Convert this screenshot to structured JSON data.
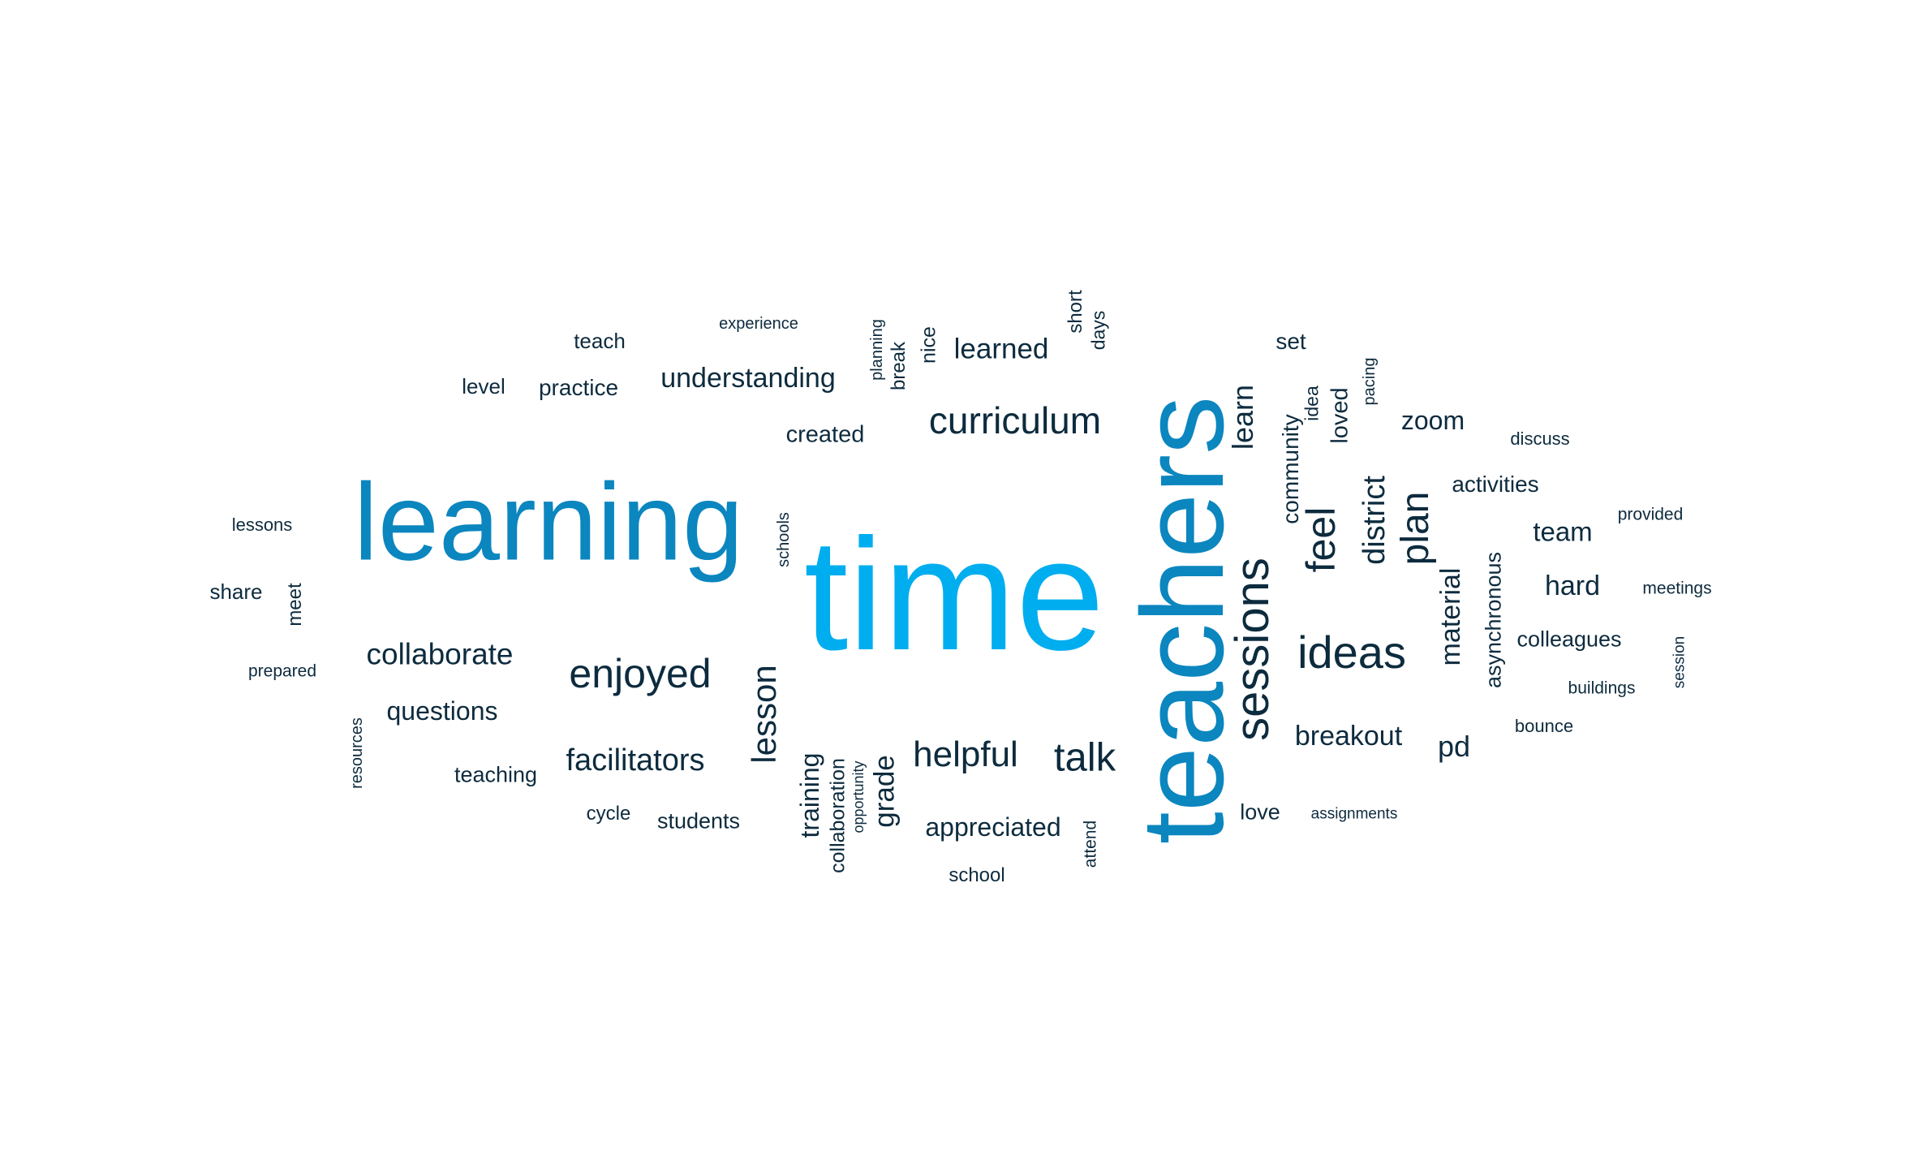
{
  "palette": {
    "dark": "#0d2b3e",
    "mid": "#0b86bf",
    "bright": "#00aef0"
  },
  "words": [
    {
      "text": "time",
      "tone": "bright",
      "weight": 100
    },
    {
      "text": "learning",
      "tone": "mid",
      "weight": 78
    },
    {
      "text": "teachers",
      "tone": "mid",
      "weight": 82
    },
    {
      "text": "sessions",
      "tone": "dark",
      "weight": 40
    },
    {
      "text": "ideas",
      "tone": "dark",
      "weight": 38
    },
    {
      "text": "enjoyed",
      "tone": "dark",
      "weight": 35
    },
    {
      "text": "curriculum",
      "tone": "dark",
      "weight": 32
    },
    {
      "text": "talk",
      "tone": "dark",
      "weight": 33
    },
    {
      "text": "helpful",
      "tone": "dark",
      "weight": 31
    },
    {
      "text": "feel",
      "tone": "dark",
      "weight": 34
    },
    {
      "text": "plan",
      "tone": "dark",
      "weight": 33
    },
    {
      "text": "lesson",
      "tone": "dark",
      "weight": 31
    },
    {
      "text": "facilitators",
      "tone": "dark",
      "weight": 27
    },
    {
      "text": "collaborate",
      "tone": "dark",
      "weight": 26
    },
    {
      "text": "district",
      "tone": "dark",
      "weight": 27
    },
    {
      "text": "understanding",
      "tone": "dark",
      "weight": 24
    },
    {
      "text": "learned",
      "tone": "dark",
      "weight": 24
    },
    {
      "text": "learn",
      "tone": "dark",
      "weight": 25
    },
    {
      "text": "material",
      "tone": "dark",
      "weight": 24
    },
    {
      "text": "breakout",
      "tone": "dark",
      "weight": 23
    },
    {
      "text": "pd",
      "tone": "dark",
      "weight": 26
    },
    {
      "text": "hard",
      "tone": "dark",
      "weight": 23
    },
    {
      "text": "team",
      "tone": "dark",
      "weight": 23
    },
    {
      "text": "zoom",
      "tone": "dark",
      "weight": 22
    },
    {
      "text": "grade",
      "tone": "dark",
      "weight": 24
    },
    {
      "text": "training",
      "tone": "dark",
      "weight": 22
    },
    {
      "text": "questions",
      "tone": "dark",
      "weight": 22
    },
    {
      "text": "appreciated",
      "tone": "dark",
      "weight": 22
    },
    {
      "text": "community",
      "tone": "dark",
      "weight": 19
    },
    {
      "text": "loved",
      "tone": "dark",
      "weight": 19
    },
    {
      "text": "activities",
      "tone": "dark",
      "weight": 19
    },
    {
      "text": "asynchronous",
      "tone": "dark",
      "weight": 18
    },
    {
      "text": "colleagues",
      "tone": "dark",
      "weight": 19
    },
    {
      "text": "created",
      "tone": "dark",
      "weight": 20
    },
    {
      "text": "practice",
      "tone": "dark",
      "weight": 19
    },
    {
      "text": "teaching",
      "tone": "dark",
      "weight": 19
    },
    {
      "text": "students",
      "tone": "dark",
      "weight": 19
    },
    {
      "text": "collaboration",
      "tone": "dark",
      "weight": 18
    },
    {
      "text": "love",
      "tone": "dark",
      "weight": 19
    },
    {
      "text": "set",
      "tone": "dark",
      "weight": 20
    },
    {
      "text": "teach",
      "tone": "dark",
      "weight": 18
    },
    {
      "text": "level",
      "tone": "dark",
      "weight": 18
    },
    {
      "text": "share",
      "tone": "dark",
      "weight": 18
    },
    {
      "text": "nice",
      "tone": "dark",
      "weight": 18
    },
    {
      "text": "break",
      "tone": "dark",
      "weight": 17
    },
    {
      "text": "short",
      "tone": "dark",
      "weight": 17
    },
    {
      "text": "days",
      "tone": "dark",
      "weight": 17
    },
    {
      "text": "idea",
      "tone": "dark",
      "weight": 17
    },
    {
      "text": "meet",
      "tone": "dark",
      "weight": 17
    },
    {
      "text": "cycle",
      "tone": "dark",
      "weight": 17
    },
    {
      "text": "school",
      "tone": "dark",
      "weight": 16
    },
    {
      "text": "lessons",
      "tone": "dark",
      "weight": 16
    },
    {
      "text": "discuss",
      "tone": "dark",
      "weight": 16
    },
    {
      "text": "bounce",
      "tone": "dark",
      "weight": 16
    },
    {
      "text": "attend",
      "tone": "dark",
      "weight": 15
    },
    {
      "text": "prepared",
      "tone": "dark",
      "weight": 15
    },
    {
      "text": "resources",
      "tone": "dark",
      "weight": 15
    },
    {
      "text": "schools",
      "tone": "dark",
      "weight": 15
    },
    {
      "text": "planning",
      "tone": "dark",
      "weight": 15
    },
    {
      "text": "pacing",
      "tone": "dark",
      "weight": 15
    },
    {
      "text": "provided",
      "tone": "dark",
      "weight": 15
    },
    {
      "text": "meetings",
      "tone": "dark",
      "weight": 15
    },
    {
      "text": "buildings",
      "tone": "dark",
      "weight": 15
    },
    {
      "text": "session",
      "tone": "dark",
      "weight": 15
    },
    {
      "text": "experience",
      "tone": "dark",
      "weight": 15
    },
    {
      "text": "assignments",
      "tone": "dark",
      "weight": 14
    },
    {
      "text": "opportunity",
      "tone": "dark",
      "weight": 14
    }
  ]
}
